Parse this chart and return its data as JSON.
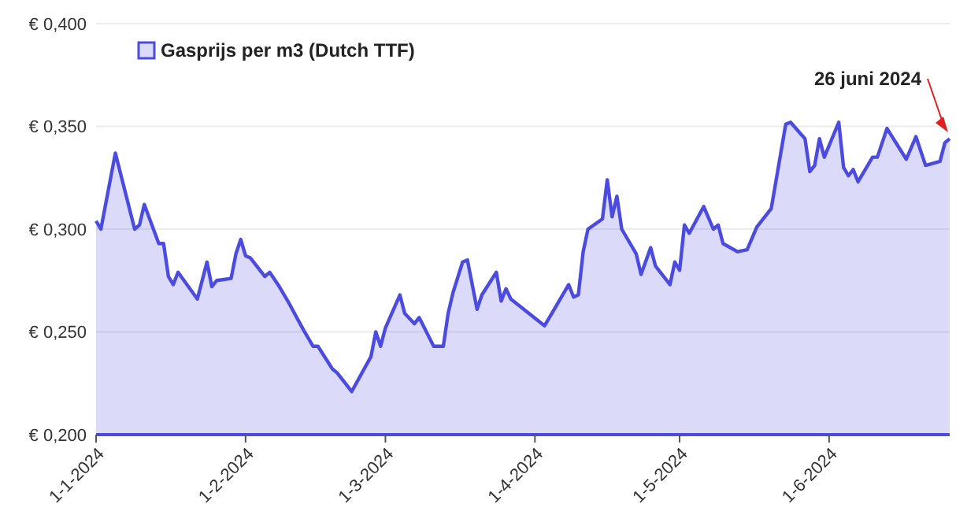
{
  "chart_data": {
    "type": "area",
    "legend": "top left",
    "grid": "y",
    "line_style": "solid",
    "x": [
      "2024-01-01",
      "2024-01-02",
      "2024-01-05",
      "2024-01-09",
      "2024-01-10",
      "2024-01-11",
      "2024-01-14",
      "2024-01-15",
      "2024-01-16",
      "2024-01-17",
      "2024-01-18",
      "2024-01-22",
      "2024-01-24",
      "2024-01-25",
      "2024-01-26",
      "2024-01-29",
      "2024-01-30",
      "2024-01-31",
      "2024-02-01",
      "2024-02-02",
      "2024-02-05",
      "2024-02-06",
      "2024-02-08",
      "2024-02-10",
      "2024-02-13",
      "2024-02-15",
      "2024-02-16",
      "2024-02-19",
      "2024-02-20",
      "2024-02-23",
      "2024-02-27",
      "2024-02-28",
      "2024-02-29",
      "2024-03-01",
      "2024-03-04",
      "2024-03-05",
      "2024-03-07",
      "2024-03-08",
      "2024-03-11",
      "2024-03-13",
      "2024-03-14",
      "2024-03-15",
      "2024-03-17",
      "2024-03-18",
      "2024-03-20",
      "2024-03-21",
      "2024-03-24",
      "2024-03-25",
      "2024-03-26",
      "2024-03-27",
      "2024-04-03",
      "2024-04-05",
      "2024-04-08",
      "2024-04-09",
      "2024-04-10",
      "2024-04-11",
      "2024-04-12",
      "2024-04-15",
      "2024-04-16",
      "2024-04-17",
      "2024-04-18",
      "2024-04-19",
      "2024-04-22",
      "2024-04-23",
      "2024-04-25",
      "2024-04-26",
      "2024-04-29",
      "2024-04-30",
      "2024-05-01",
      "2024-05-02",
      "2024-05-03",
      "2024-05-06",
      "2024-05-08",
      "2024-05-09",
      "2024-05-10",
      "2024-05-13",
      "2024-05-15",
      "2024-05-17",
      "2024-05-20",
      "2024-05-23",
      "2024-05-24",
      "2024-05-27",
      "2024-05-28",
      "2024-05-29",
      "2024-05-30",
      "2024-05-31",
      "2024-06-03",
      "2024-06-04",
      "2024-06-05",
      "2024-06-06",
      "2024-06-07",
      "2024-06-10",
      "2024-06-11",
      "2024-06-13",
      "2024-06-17",
      "2024-06-19",
      "2024-06-21",
      "2024-06-24",
      "2024-06-25",
      "2024-06-26"
    ],
    "series": [
      {
        "name": "Gasprijs per m3 (Dutch TTF)",
        "color": "#4b4be2",
        "values": [
          0.304,
          0.3,
          0.337,
          0.3,
          0.302,
          0.312,
          0.293,
          0.293,
          0.277,
          0.273,
          0.279,
          0.266,
          0.284,
          0.272,
          0.275,
          0.276,
          0.288,
          0.295,
          0.287,
          0.286,
          0.277,
          0.279,
          0.272,
          0.264,
          0.251,
          0.243,
          0.243,
          0.232,
          0.23,
          0.221,
          0.238,
          0.25,
          0.243,
          0.252,
          0.268,
          0.259,
          0.254,
          0.257,
          0.243,
          0.243,
          0.259,
          0.269,
          0.284,
          0.285,
          0.261,
          0.268,
          0.279,
          0.265,
          0.271,
          0.266,
          0.253,
          0.261,
          0.273,
          0.267,
          0.268,
          0.289,
          0.3,
          0.305,
          0.324,
          0.306,
          0.316,
          0.3,
          0.288,
          0.278,
          0.291,
          0.282,
          0.273,
          0.284,
          0.28,
          0.302,
          0.298,
          0.311,
          0.3,
          0.302,
          0.293,
          0.289,
          0.29,
          0.301,
          0.31,
          0.351,
          0.352,
          0.344,
          0.328,
          0.331,
          0.344,
          0.335,
          0.352,
          0.33,
          0.326,
          0.329,
          0.323,
          0.335,
          0.335,
          0.349,
          0.334,
          0.345,
          0.331,
          0.333,
          0.342,
          0.344
        ]
      }
    ],
    "xlim": [
      "2024-01-01",
      "2024-06-26"
    ],
    "xticks": [
      {
        "value": "2024-01-01",
        "label": "1-1-2024"
      },
      {
        "value": "2024-02-01",
        "label": "1-2-2024"
      },
      {
        "value": "2024-03-01",
        "label": "1-3-2024"
      },
      {
        "value": "2024-04-01",
        "label": "1-4-2024"
      },
      {
        "value": "2024-05-01",
        "label": "1-5-2024"
      },
      {
        "value": "2024-06-01",
        "label": "1-6-2024"
      }
    ],
    "ylim": [
      0.2,
      0.4
    ],
    "yticks": [
      {
        "value": 0.2,
        "label": "€ 0,200"
      },
      {
        "value": 0.25,
        "label": "€ 0,250"
      },
      {
        "value": 0.3,
        "label": "€ 0,300"
      },
      {
        "value": 0.35,
        "label": "€ 0,350"
      },
      {
        "value": 0.4,
        "label": "€ 0,400"
      }
    ],
    "annotations": [
      "26 juni 2024"
    ]
  }
}
